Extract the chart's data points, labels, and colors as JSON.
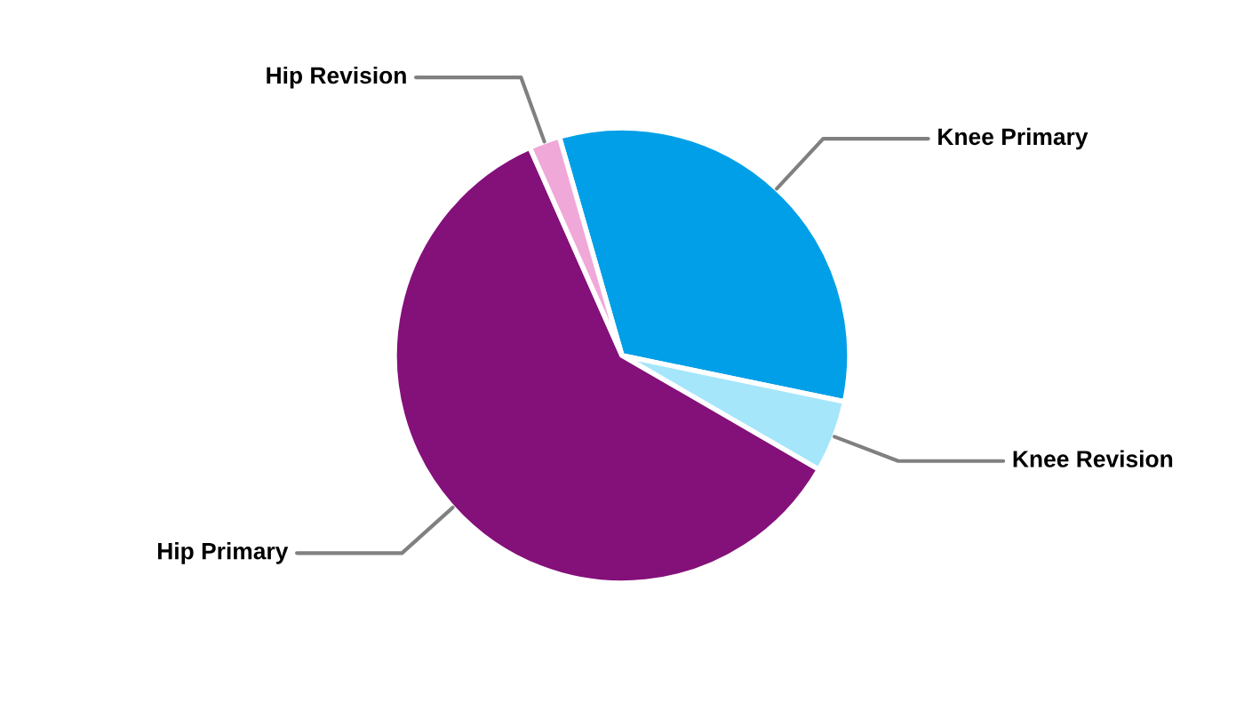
{
  "chart_data": {
    "type": "pie",
    "categories": [
      "Knee Primary",
      "Knee Revision",
      "Hip Primary",
      "Hip Revision"
    ],
    "values": [
      32.7,
      5.1,
      60.0,
      2.2
    ],
    "colors": [
      "#009fe8",
      "#a5e6fb",
      "#84107a",
      "#f0a8d8"
    ]
  }
}
